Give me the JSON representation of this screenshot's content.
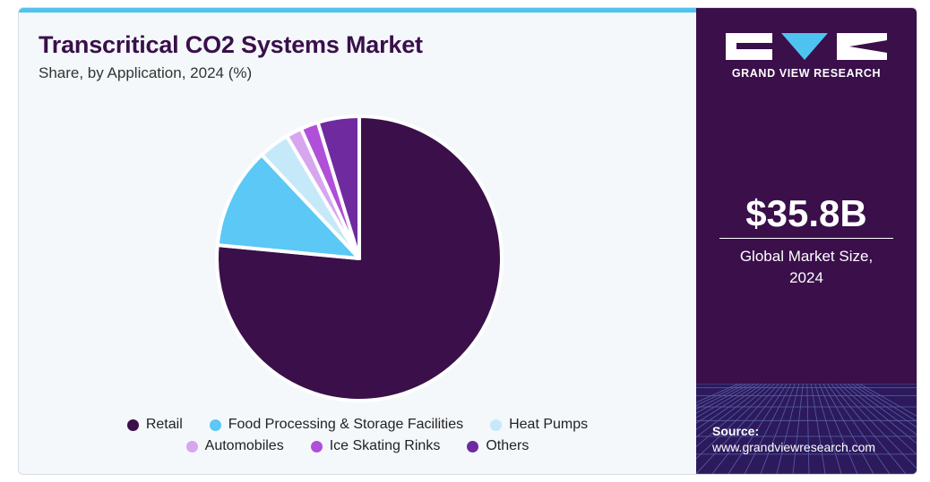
{
  "header": {
    "title": "Transcritical CO2 Systems Market",
    "subtitle": "Share, by Application, 2024 (%)"
  },
  "chart_data": {
    "type": "pie",
    "title": "Transcritical CO2 Systems Market",
    "subtitle": "Share, by Application, 2024 (%)",
    "categories": [
      "Retail",
      "Food Processing & Storage Facilities",
      "Heat Pumps",
      "Automobiles",
      "Ice Skating Rinks",
      "Others"
    ],
    "values": [
      76.5,
      11.5,
      3.5,
      1.8,
      2.0,
      4.7
    ],
    "colors": [
      "#3a0f4a",
      "#5bc8f5",
      "#c6e9fa",
      "#d7a6ee",
      "#b04fd8",
      "#6f2aa0"
    ],
    "legend_position": "bottom"
  },
  "legend": {
    "row1": [
      "Retail",
      "Food Processing & Storage Facilities",
      "Heat Pumps"
    ],
    "row2": [
      "Automobiles",
      "Ice Skating Rinks",
      "Others"
    ]
  },
  "sidebar": {
    "brand": "GRAND VIEW RESEARCH",
    "market_size": "$35.8B",
    "market_caption": "Global Market Size, 2024",
    "source_label": "Source:",
    "source_url": "www.grandviewresearch.com",
    "background_color": "#3a0f4a"
  }
}
